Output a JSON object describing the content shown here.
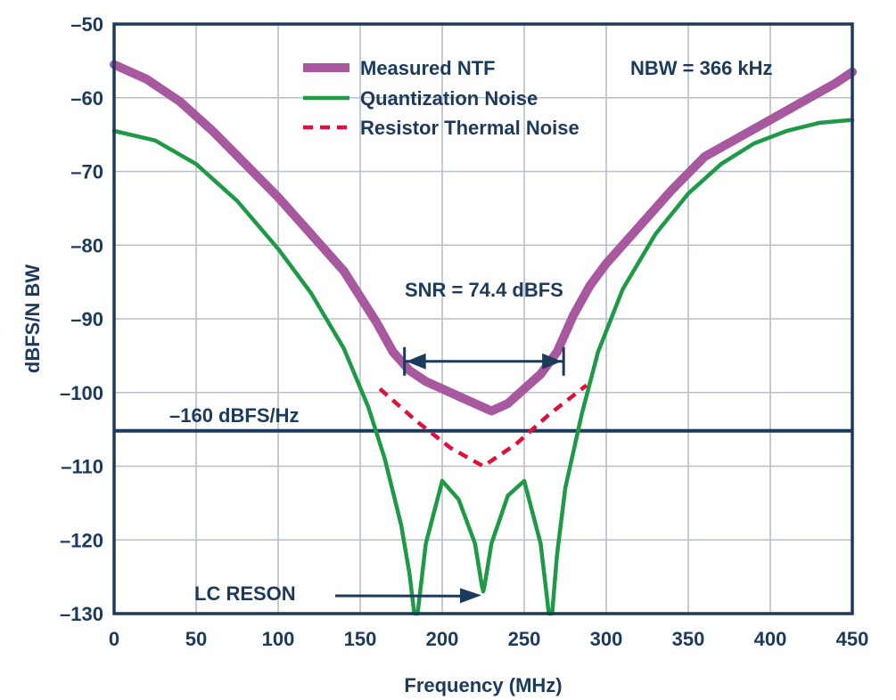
{
  "colors": {
    "axis": "#1b3a5c",
    "grid": "#b8bfc9",
    "measured": "#a8589e",
    "quant": "#1e9a47",
    "thermal": "#e0103a",
    "threshold": "#1b3a5c"
  },
  "chart_data": {
    "type": "line",
    "title": "",
    "xlabel": "Frequency (MHz)",
    "ylabel": "dBFS/N BW",
    "xlim": [
      0,
      450
    ],
    "ylim": [
      -130,
      -50
    ],
    "x_ticks": [
      0,
      50,
      100,
      150,
      200,
      250,
      300,
      350,
      400,
      450
    ],
    "x_tick_labels": [
      "0",
      "50",
      "100",
      "150",
      "200",
      "250",
      "300",
      "350",
      "400",
      "450"
    ],
    "y_ticks": [
      -50,
      -60,
      -70,
      -80,
      -90,
      -100,
      -110,
      -120,
      -130
    ],
    "y_tick_labels": [
      "–50",
      "–60",
      "–70",
      "–80",
      "–90",
      "–100",
      "–110",
      "–120",
      "–130"
    ],
    "grid": true,
    "legend_position": "top-right",
    "series": [
      {
        "name": "Measured NTF",
        "style": "thick-band",
        "x": [
          0,
          20,
          40,
          60,
          80,
          100,
          120,
          140,
          160,
          170,
          180,
          190,
          200,
          210,
          220,
          230,
          240,
          250,
          260,
          270,
          280,
          290,
          300,
          320,
          340,
          360,
          380,
          400,
          420,
          440,
          450
        ],
        "y": [
          -55.5,
          -57.5,
          -60.5,
          -64.5,
          -69.0,
          -73.5,
          -78.5,
          -83.5,
          -90.5,
          -94.5,
          -97.0,
          -98.5,
          -99.5,
          -100.5,
          -101.5,
          -102.5,
          -101.5,
          -99.5,
          -97.5,
          -94.5,
          -89.5,
          -85.5,
          -82.5,
          -77.5,
          -72.5,
          -68.0,
          -65.5,
          -63.0,
          -60.5,
          -58.0,
          -56.5
        ]
      },
      {
        "name": "Quantization Noise",
        "style": "solid",
        "x": [
          0,
          25,
          50,
          75,
          100,
          120,
          140,
          155,
          165,
          175,
          180,
          183,
          185,
          190,
          200,
          210,
          220,
          224,
          225,
          226,
          230,
          240,
          250,
          260,
          265,
          267,
          270,
          275,
          285,
          295,
          310,
          330,
          350,
          370,
          390,
          410,
          430,
          450
        ],
        "y": [
          -64.5,
          -65.8,
          -69.0,
          -74.0,
          -80.5,
          -86.5,
          -94.0,
          -102.0,
          -109.0,
          -118.0,
          -124.5,
          -130.0,
          -130.0,
          -120.5,
          -112.0,
          -114.5,
          -120.5,
          -126.0,
          -127.0,
          -126.0,
          -120.5,
          -114.0,
          -112.0,
          -120.5,
          -130.0,
          -130.0,
          -122.0,
          -113.0,
          -103.0,
          -94.5,
          -86.0,
          -78.5,
          -73.0,
          -69.0,
          -66.2,
          -64.5,
          -63.4,
          -63.0
        ]
      },
      {
        "name": "Resistor Thermal Noise",
        "style": "dashed",
        "x": [
          162,
          185,
          205,
          225,
          245,
          265,
          288
        ],
        "y": [
          -99.5,
          -104.0,
          -107.5,
          -110.0,
          -107.0,
          -103.0,
          -99.0
        ]
      }
    ],
    "threshold": {
      "label": "–160 dBFS/Hz",
      "y": -105.2
    },
    "annotations": {
      "nbw": "NBW = 366 kHz",
      "snr": {
        "label": "SNR = 74.4 dBFS",
        "x_start": 177,
        "x_end": 274,
        "y": -96.5
      },
      "lc_reson": {
        "label": "LC RESON",
        "arrow_to_x": 225,
        "arrow_to_y": -127.5
      }
    }
  }
}
